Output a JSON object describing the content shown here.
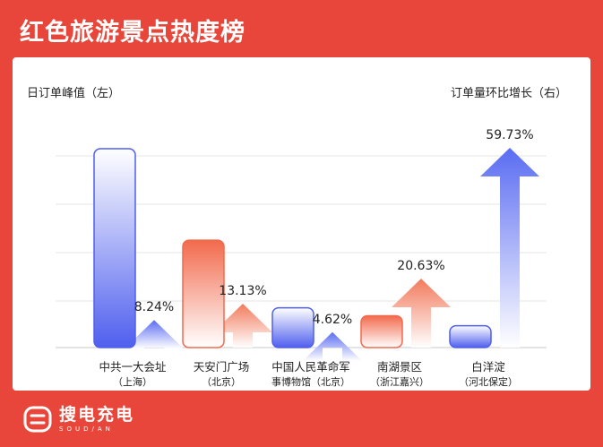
{
  "header": {
    "title": "红色旅游景点热度榜"
  },
  "brand": {
    "name": "搜电充电",
    "sub": "SOUD/AN"
  },
  "colors": {
    "background": "#e8463a",
    "blue": "#5a6cf2",
    "orange": "#f27a5c",
    "panel": "#ffffff"
  },
  "chart_data": {
    "type": "bar",
    "title": "红色旅游景点热度榜",
    "ylabel_left": "日订单峰值（左）",
    "ylabel_right": "订单量环比增长（右）",
    "categories": [
      {
        "line1": "中共一大会址",
        "line2": "（上海）"
      },
      {
        "line1": "天安门广场",
        "line2": "（北京）"
      },
      {
        "line1": "中国人民革命军",
        "line2": "事博物馆（北京）"
      },
      {
        "line1": "南湖景区",
        "line2": "（浙江嘉兴）"
      },
      {
        "line1": "白洋淀",
        "line2": "（河北保定）"
      }
    ],
    "series": [
      {
        "axis": "left",
        "values": [
          100,
          54,
          20,
          16,
          11
        ]
      },
      {
        "axis": "right",
        "values": [
          8.24,
          13.13,
          4.62,
          20.63,
          59.73
        ],
        "labels": [
          "8.24%",
          "13.13%",
          "4.62%",
          "20.63%",
          "59.73%"
        ]
      }
    ],
    "bar_colors": [
      "blue",
      "orange",
      "blue",
      "orange",
      "blue"
    ],
    "grid": true
  }
}
